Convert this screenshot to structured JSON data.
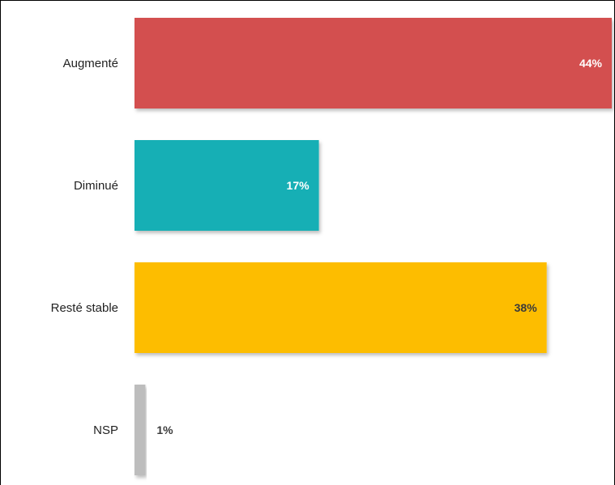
{
  "chart_data": {
    "type": "bar",
    "orientation": "horizontal",
    "categories": [
      "Augmenté",
      "Diminué",
      "Resté stable",
      "NSP"
    ],
    "values": [
      44,
      17,
      38,
      1
    ],
    "value_labels": [
      "44%",
      "17%",
      "38%",
      "1%"
    ],
    "unit": "%",
    "colors": [
      "#d34f4f",
      "#15afb5",
      "#fdbd00",
      "#bdbdbd"
    ],
    "label_colors": [
      "#ffffff",
      "#ffffff",
      "#3a3a3a",
      "#3a3a3a"
    ],
    "xlim": [
      0,
      44
    ],
    "grid": false,
    "legend": "none",
    "title": "",
    "xlabel": "",
    "ylabel": ""
  }
}
